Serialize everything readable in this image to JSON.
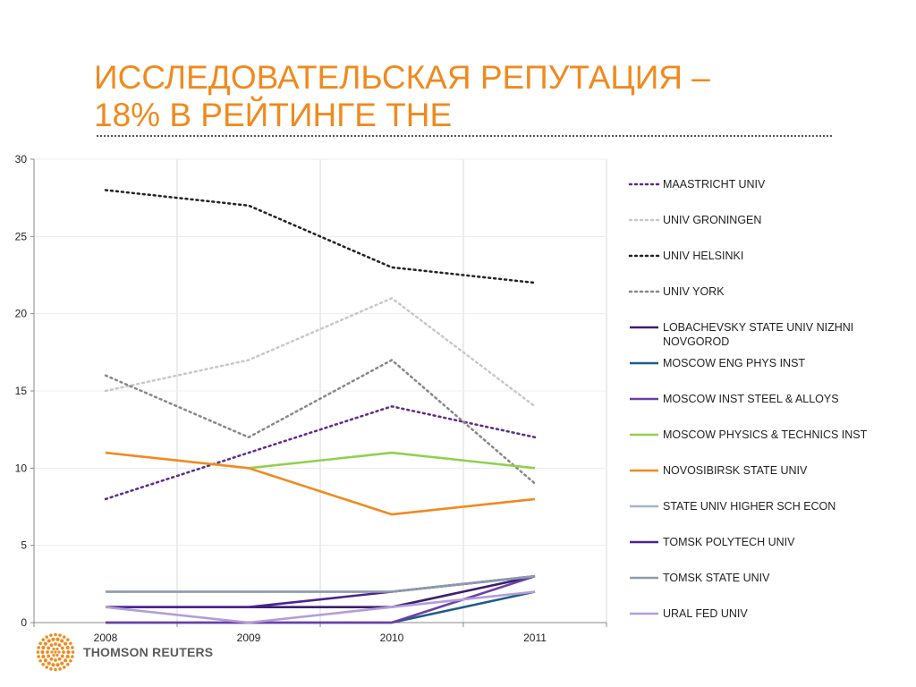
{
  "slide": {
    "title_line1": "ИССЛЕДОВАТЕЛЬСКАЯ РЕПУТАЦИЯ –",
    "title_line2": "18% В РЕЙТИНГЕ THE",
    "title_color": "#F08A1E"
  },
  "logo": {
    "text": "THOMSON REUTERS",
    "mark": "thomson-reuters-dot-circle",
    "color": "#F08A1E"
  },
  "chart_data": {
    "type": "line",
    "title": "",
    "xlabel": "",
    "ylabel": "",
    "categories": [
      "2008",
      "2009",
      "2010",
      "2011"
    ],
    "ylim": [
      0,
      30
    ],
    "yticks": [
      0,
      5,
      10,
      15,
      20,
      25,
      30
    ],
    "grid": "vertical",
    "legend_position": "right",
    "series": [
      {
        "name": "MAASTRICHT UNIV",
        "values": [
          8,
          11,
          14,
          12
        ],
        "color": "#5B2C8F",
        "style": "dotted"
      },
      {
        "name": "UNIV GRONINGEN",
        "values": [
          15,
          17,
          21,
          14
        ],
        "color": "#C8C8C8",
        "style": "dotted"
      },
      {
        "name": "UNIV HELSINKI",
        "values": [
          28,
          27,
          23,
          22
        ],
        "color": "#222222",
        "style": "dotted"
      },
      {
        "name": "UNIV YORK",
        "values": [
          16,
          12,
          17,
          9
        ],
        "color": "#888888",
        "style": "dotted"
      },
      {
        "name": "LOBACHEVSKY STATE UNIV NIZHNI NOVGOROD",
        "values": [
          1,
          1,
          1,
          3
        ],
        "color": "#3C1F6E",
        "style": "solid"
      },
      {
        "name": "MOSCOW ENG PHYS INST",
        "values": [
          0,
          0,
          0,
          2
        ],
        "color": "#1F5C8A",
        "style": "solid"
      },
      {
        "name": "MOSCOW INST STEEL & ALLOYS",
        "values": [
          0,
          0,
          0,
          3
        ],
        "color": "#6A3FA8",
        "style": "solid"
      },
      {
        "name": "MOSCOW PHYSICS & TECHNICS INST",
        "values": [
          null,
          10,
          11,
          10
        ],
        "color": "#92D050",
        "style": "solid"
      },
      {
        "name": "NOVOSIBIRSK STATE UNIV",
        "values": [
          11,
          10,
          7,
          8
        ],
        "color": "#F08A1E",
        "style": "solid"
      },
      {
        "name": "STATE UNIV HIGHER SCH ECON",
        "values": [
          2,
          2,
          2,
          3
        ],
        "color": "#A6B3C4",
        "style": "solid"
      },
      {
        "name": "TOMSK POLYTECH UNIV",
        "values": [
          1,
          1,
          2,
          3
        ],
        "color": "#4B2390",
        "style": "solid"
      },
      {
        "name": "TOMSK STATE UNIV",
        "values": [
          2,
          2,
          2,
          3
        ],
        "color": "#8C9BAD",
        "style": "solid"
      },
      {
        "name": "URAL FED UNIV",
        "values": [
          1,
          0,
          1,
          2
        ],
        "color": "#B39DDB",
        "style": "solid"
      }
    ]
  }
}
